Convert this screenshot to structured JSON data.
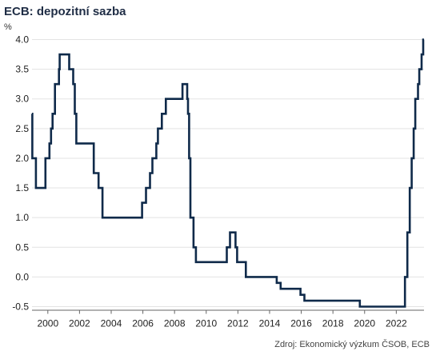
{
  "chart_data": {
    "type": "line",
    "title": "ECB: depozitní sazba",
    "ylabel": "%",
    "source": "Zdroj: Ekonomický výzkum ČSOB, ECB",
    "xlim": [
      1999.0,
      2023.75
    ],
    "ylim": [
      -0.5,
      4.0
    ],
    "yticks": [
      "4.0",
      "3.5",
      "3.0",
      "2.5",
      "2.0",
      "1.5",
      "1.0",
      "0.5",
      "0.0",
      "-0.5"
    ],
    "ytick_values": [
      4.0,
      3.5,
      3.0,
      2.5,
      2.0,
      1.5,
      1.0,
      0.5,
      0.0,
      -0.5
    ],
    "xticks": [
      "2000",
      "2002",
      "2004",
      "2006",
      "2008",
      "2010",
      "2012",
      "2014",
      "2016",
      "2018",
      "2020",
      "2022"
    ],
    "xtick_values": [
      2000,
      2002,
      2004,
      2006,
      2008,
      2010,
      2012,
      2014,
      2016,
      2018,
      2020,
      2022
    ],
    "grid": true,
    "line_color": "#0f2a4a",
    "series": [
      {
        "step": true,
        "points": [
          [
            1999.0,
            2.75
          ],
          [
            1999.02,
            2.0
          ],
          [
            1999.25,
            1.5
          ],
          [
            1999.85,
            2.0
          ],
          [
            2000.1,
            2.25
          ],
          [
            2000.2,
            2.5
          ],
          [
            2000.3,
            2.75
          ],
          [
            2000.45,
            3.25
          ],
          [
            2000.7,
            3.5
          ],
          [
            2000.75,
            3.75
          ],
          [
            2001.35,
            3.5
          ],
          [
            2001.6,
            3.25
          ],
          [
            2001.7,
            2.75
          ],
          [
            2001.8,
            2.25
          ],
          [
            2002.9,
            1.75
          ],
          [
            2003.2,
            1.5
          ],
          [
            2003.45,
            1.0
          ],
          [
            2005.95,
            1.25
          ],
          [
            2006.2,
            1.5
          ],
          [
            2006.45,
            1.75
          ],
          [
            2006.6,
            2.0
          ],
          [
            2006.85,
            2.25
          ],
          [
            2006.95,
            2.5
          ],
          [
            2007.2,
            2.75
          ],
          [
            2007.45,
            3.0
          ],
          [
            2008.5,
            3.25
          ],
          [
            2008.8,
            3.0
          ],
          [
            2008.85,
            2.75
          ],
          [
            2008.92,
            2.0
          ],
          [
            2009.0,
            1.0
          ],
          [
            2009.2,
            0.5
          ],
          [
            2009.35,
            0.25
          ],
          [
            2011.3,
            0.5
          ],
          [
            2011.5,
            0.75
          ],
          [
            2011.85,
            0.5
          ],
          [
            2011.95,
            0.25
          ],
          [
            2012.5,
            0.0
          ],
          [
            2014.45,
            -0.1
          ],
          [
            2014.7,
            -0.2
          ],
          [
            2015.95,
            -0.3
          ],
          [
            2016.2,
            -0.4
          ],
          [
            2019.7,
            -0.5
          ],
          [
            2022.55,
            0.0
          ],
          [
            2022.7,
            0.75
          ],
          [
            2022.85,
            1.5
          ],
          [
            2022.97,
            2.0
          ],
          [
            2023.1,
            2.5
          ],
          [
            2023.2,
            3.0
          ],
          [
            2023.37,
            3.25
          ],
          [
            2023.45,
            3.5
          ],
          [
            2023.6,
            3.75
          ],
          [
            2023.7,
            4.0
          ],
          [
            2023.75,
            4.0
          ]
        ]
      }
    ]
  }
}
